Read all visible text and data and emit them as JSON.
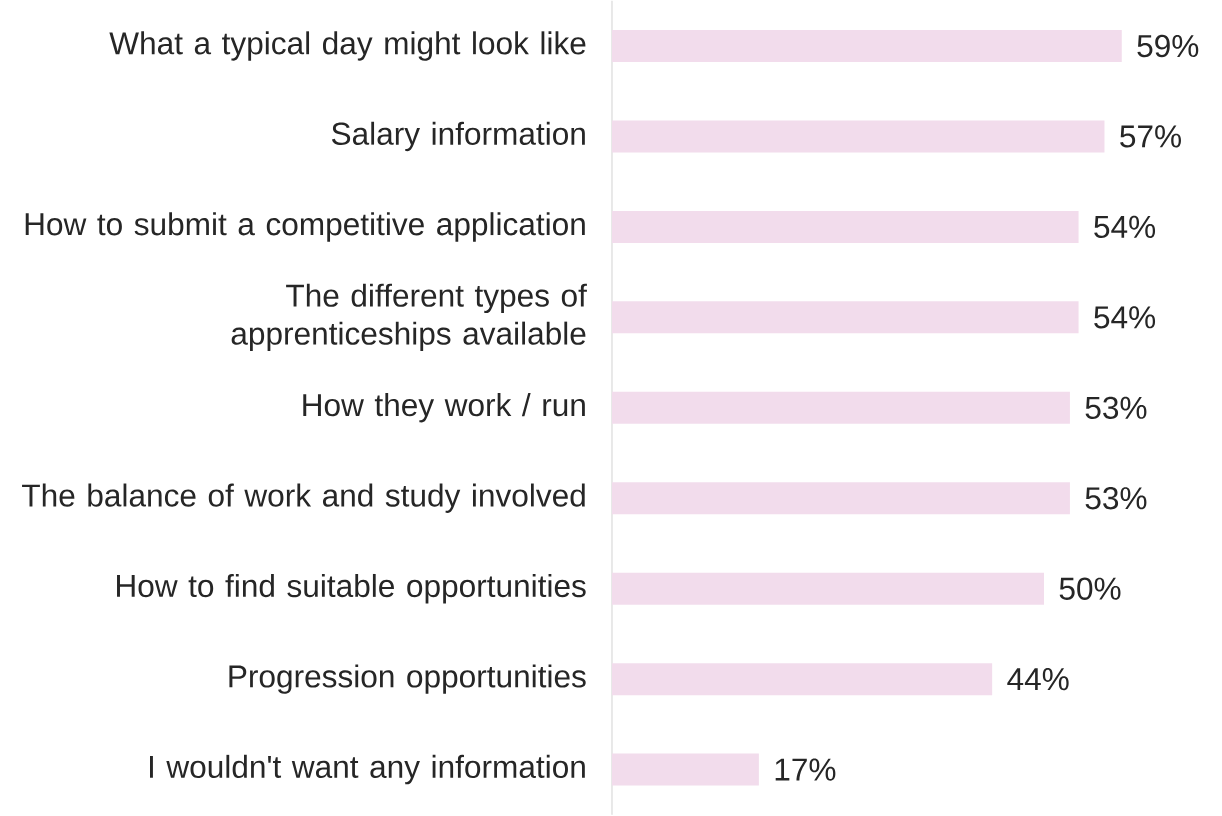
{
  "chart_data": {
    "type": "bar",
    "orientation": "horizontal",
    "categories": [
      "What a typical day might look like",
      "Salary information",
      "How to submit a competitive application",
      "The different types of apprenticeships available",
      "How they work / run",
      "The balance of work and study involved",
      "How to find suitable opportunities",
      "Progression opportunities",
      "I wouldn't want any information"
    ],
    "values": [
      59,
      57,
      54,
      54,
      53,
      53,
      50,
      44,
      17
    ],
    "value_labels": [
      "59%",
      "57%",
      "54%",
      "54%",
      "53%",
      "53%",
      "50%",
      "44%",
      "17%"
    ],
    "color": "#f2dcec"
  }
}
